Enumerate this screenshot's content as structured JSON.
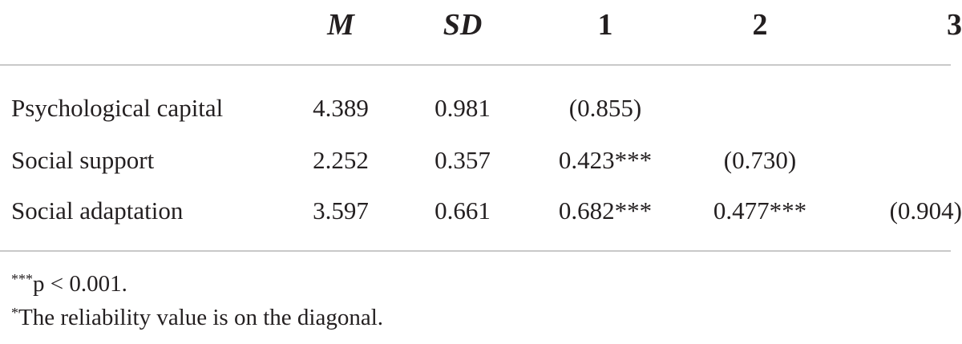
{
  "table": {
    "headers": {
      "m": "M",
      "sd": "SD",
      "c1": "1",
      "c2": "2",
      "c3": "3"
    },
    "rows": [
      {
        "label": "Psychological capital",
        "m": "4.389",
        "sd": "0.981",
        "c1": "(0.855)",
        "c2": "",
        "c3": ""
      },
      {
        "label": "Social support",
        "m": "2.252",
        "sd": "0.357",
        "c1": "0.423***",
        "c2": "(0.730)",
        "c3": ""
      },
      {
        "label": "Social adaptation",
        "m": "3.597",
        "sd": "0.661",
        "c1": "0.682***",
        "c2": "0.477***",
        "c3": "(0.904)"
      }
    ]
  },
  "notes": {
    "significance_marker": "***",
    "significance_text": "p < 0.001.",
    "reliability_marker": "*",
    "reliability_text": "The reliability value is on the diagonal."
  }
}
